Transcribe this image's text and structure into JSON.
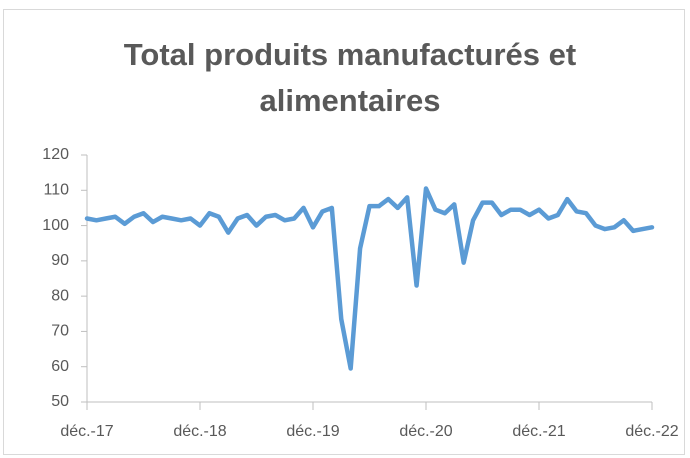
{
  "chart_data": {
    "type": "line",
    "title": "Total produits manufacturés et alimentaires",
    "categories": [
      "déc.-17",
      null,
      null,
      null,
      null,
      null,
      null,
      null,
      null,
      null,
      null,
      null,
      "déc.-18",
      null,
      null,
      null,
      null,
      null,
      null,
      null,
      null,
      null,
      null,
      null,
      "déc.-19",
      null,
      null,
      null,
      null,
      null,
      null,
      null,
      null,
      null,
      null,
      null,
      "déc.-20",
      null,
      null,
      null,
      null,
      null,
      null,
      null,
      null,
      null,
      null,
      null,
      "déc.-21",
      null,
      null,
      null,
      null,
      null,
      null,
      null,
      null,
      null,
      null,
      null,
      "déc.-22"
    ],
    "values": [
      102,
      101.5,
      102,
      102.5,
      100.5,
      102.5,
      103.5,
      101,
      102.5,
      102,
      101.5,
      102,
      100,
      103.5,
      102.5,
      98,
      102,
      103,
      100,
      102.5,
      103,
      101.5,
      102,
      105,
      99.5,
      104,
      105,
      73.5,
      59.5,
      93.5,
      105.5,
      105.5,
      107.5,
      105,
      108,
      83,
      110.5,
      104.5,
      103.5,
      106,
      89.5,
      101.5,
      106.5,
      106.5,
      103,
      104.5,
      104.5,
      103,
      104.5,
      102,
      103,
      107.5,
      104,
      103.5,
      100,
      99,
      99.5,
      101.5,
      98.5,
      99,
      99.5
    ],
    "color": "#5b9bd5",
    "ylim": [
      50,
      120
    ],
    "yticks": [
      50,
      60,
      70,
      80,
      90,
      100,
      110,
      120
    ],
    "grid": false
  }
}
